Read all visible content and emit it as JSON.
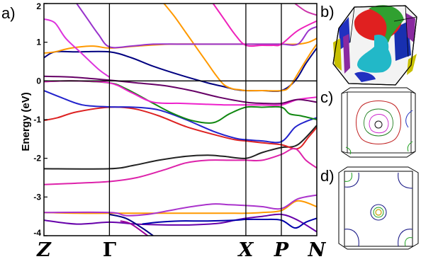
{
  "panel_labels": {
    "a": "a)",
    "b": "b)",
    "c": "c)",
    "d": "d)"
  },
  "chart_data": {
    "type": "line",
    "title": "",
    "ylabel": "Energy (eV)",
    "xlabel": "",
    "ylim": [
      -4,
      2
    ],
    "yticks": [
      {
        "value": 2,
        "label": "2"
      },
      {
        "value": 1,
        "label": "1"
      },
      {
        "value": 0,
        "label": "0"
      },
      {
        "value": -1,
        "label": "-1"
      },
      {
        "value": -2,
        "label": "-2"
      },
      {
        "value": -3,
        "label": "-3"
      },
      {
        "value": -4,
        "label": "-4"
      }
    ],
    "kpoints": [
      {
        "label": "Z",
        "pos": 0.0,
        "upright": false
      },
      {
        "label": "Γ",
        "pos": 0.24,
        "upright": true
      },
      {
        "label": "X",
        "pos": 0.74,
        "upright": false
      },
      {
        "label": "P",
        "pos": 0.87,
        "upright": false
      },
      {
        "label": "N",
        "pos": 1.0,
        "upright": false
      }
    ],
    "fermi_level": 0,
    "series": [
      {
        "color": "#222222",
        "x": [
          0,
          0.24,
          0.33,
          0.42,
          0.52,
          0.6,
          0.66,
          0.74,
          0.8,
          0.87,
          0.93,
          1.0
        ],
        "y": [
          -2.27,
          -2.27,
          -2.18,
          -2.05,
          -1.95,
          -1.92,
          -1.95,
          -2.0,
          -1.85,
          -1.72,
          -1.65,
          -1.15
        ]
      },
      {
        "color": "#dd2222",
        "x": [
          0,
          0.05,
          0.12,
          0.24,
          0.33,
          0.42,
          0.52,
          0.62,
          0.7,
          0.74,
          0.8,
          0.87,
          0.93,
          0.97,
          1.0
        ],
        "y": [
          -1.02,
          -0.95,
          -0.8,
          -0.68,
          -0.72,
          -0.9,
          -1.18,
          -1.38,
          -1.52,
          -1.55,
          -1.6,
          -1.65,
          -1.75,
          -1.45,
          -1.2
        ]
      },
      {
        "color": "#2222cc",
        "x": [
          0,
          0.06,
          0.14,
          0.24,
          0.33,
          0.42,
          0.52,
          0.62,
          0.7,
          0.74,
          0.8,
          0.87,
          0.92,
          0.96,
          1.0
        ],
        "y": [
          -0.25,
          -0.42,
          -0.62,
          -0.67,
          -0.68,
          -0.75,
          -1.0,
          -1.3,
          -1.48,
          -1.52,
          -1.55,
          -1.57,
          -1.2,
          -1.05,
          -0.95
        ]
      },
      {
        "color": "#118811",
        "x": [
          0,
          0.1,
          0.24,
          0.3,
          0.38,
          0.46,
          0.54,
          0.62,
          0.68,
          0.74,
          0.8,
          0.87,
          0.9,
          0.94,
          1.0
        ],
        "y": [
          -0.02,
          0.0,
          -0.05,
          -0.2,
          -0.5,
          -0.8,
          -1.02,
          -1.08,
          -0.85,
          -0.68,
          -0.68,
          -0.68,
          -0.85,
          -0.9,
          -1.0
        ]
      },
      {
        "color": "#ee22cc",
        "x": [
          0,
          0.1,
          0.24,
          0.32,
          0.4,
          0.5,
          0.58,
          0.66,
          0.74,
          0.8,
          0.87,
          0.93,
          1.0
        ],
        "y": [
          -0.02,
          0.0,
          -0.05,
          -0.3,
          -0.55,
          -0.58,
          -0.6,
          -0.62,
          -0.62,
          -0.62,
          -0.62,
          -0.48,
          -0.42
        ]
      },
      {
        "color": "#660066",
        "x": [
          0,
          0.1,
          0.24,
          0.34,
          0.44,
          0.54,
          0.64,
          0.74,
          0.8,
          0.87,
          0.93,
          1.0
        ],
        "y": [
          0.12,
          0.1,
          0.02,
          -0.05,
          -0.12,
          -0.25,
          -0.42,
          -0.55,
          -0.58,
          -0.58,
          -0.48,
          -0.55
        ]
      },
      {
        "color": "#000080",
        "x": [
          0,
          0.04,
          0.12,
          0.24,
          0.32,
          0.4,
          0.5,
          0.6,
          0.66,
          0.7,
          0.74,
          0.8,
          0.87,
          0.92,
          0.96,
          1.0
        ],
        "y": [
          0.6,
          0.75,
          0.75,
          0.75,
          0.6,
          0.38,
          0.15,
          -0.05,
          -0.15,
          -0.22,
          -0.25,
          -0.25,
          -0.25,
          0.0,
          0.45,
          0.85
        ]
      },
      {
        "color": "#ff9900",
        "x": [
          0,
          0.04,
          0.1,
          0.18,
          0.24,
          0.34,
          0.46,
          0.58,
          0.66,
          0.74,
          0.8,
          0.87,
          0.93,
          0.97,
          1.0
        ],
        "y": [
          0.72,
          0.75,
          0.85,
          0.9,
          0.85,
          0.9,
          0.95,
          0.95,
          0.95,
          0.95,
          0.95,
          0.95,
          0.95,
          1.0,
          1.1
        ]
      },
      {
        "color": "#ff9900",
        "x": [
          0.44,
          0.48,
          0.52,
          0.56,
          0.6,
          0.63,
          0.66,
          0.69,
          0.72,
          0.74,
          0.8,
          0.87,
          0.9,
          0.94,
          0.98,
          1.0
        ],
        "y": [
          2.0,
          1.65,
          1.25,
          0.85,
          0.45,
          0.15,
          -0.1,
          -0.2,
          -0.23,
          -0.25,
          -0.25,
          -0.25,
          -0.15,
          0.3,
          0.75,
          0.95
        ]
      },
      {
        "color": "#dd33dd",
        "x": [
          0,
          0.04,
          0.08,
          0.14,
          0.2,
          0.24
        ],
        "y": [
          1.6,
          1.5,
          1.1,
          0.7,
          0.3,
          0.1
        ]
      },
      {
        "color": "#9933cc",
        "x": [
          0.12,
          0.16,
          0.2,
          0.24,
          0.32,
          0.4,
          0.5,
          0.58,
          0.66,
          0.74,
          0.8,
          0.87,
          0.93,
          0.97,
          1.0
        ],
        "y": [
          2.0,
          1.6,
          1.2,
          0.88,
          0.9,
          0.95,
          0.95,
          0.95,
          0.95,
          0.95,
          0.95,
          0.95,
          0.95,
          1.3,
          1.4
        ]
      },
      {
        "color": "#ee22bb",
        "x": [
          0.62,
          0.66,
          0.7,
          0.74,
          0.8,
          0.84,
          0.87,
          0.93,
          1.0
        ],
        "y": [
          2.0,
          1.6,
          1.2,
          0.92,
          0.92,
          0.92,
          0.95,
          1.3,
          1.55
        ]
      },
      {
        "color": "#cc33aa",
        "x": [
          0.92,
          0.96,
          1.0
        ],
        "y": [
          2.0,
          1.8,
          1.7
        ]
      },
      {
        "color": "#dd22aa",
        "x": [
          0,
          0.1,
          0.24,
          0.34,
          0.44,
          0.52,
          0.6,
          0.68,
          0.74,
          0.8,
          0.87,
          0.92,
          0.96,
          1.0
        ],
        "y": [
          -2.68,
          -2.65,
          -2.6,
          -2.5,
          -2.3,
          -2.12,
          -2.05,
          -2.05,
          -2.05,
          -2.05,
          -1.9,
          -1.75,
          -2.05,
          -2.25
        ]
      },
      {
        "color": "#ff9900",
        "x": [
          0,
          0.12,
          0.24,
          0.36,
          0.48,
          0.6,
          0.7,
          0.74,
          0.8,
          0.87,
          0.93,
          1.0
        ],
        "y": [
          -3.4,
          -3.42,
          -3.42,
          -3.42,
          -3.42,
          -3.42,
          -3.42,
          -3.42,
          -3.4,
          -3.35,
          -3.1,
          -3.25
        ]
      },
      {
        "color": "#aa33cc",
        "x": [
          0,
          0.24,
          0.3,
          0.38,
          0.46,
          0.54,
          0.62,
          0.68,
          0.74,
          0.8,
          0.87,
          0.93,
          1.0
        ],
        "y": [
          -3.4,
          -3.4,
          -3.48,
          -3.45,
          -3.35,
          -3.25,
          -3.18,
          -3.2,
          -3.22,
          -3.25,
          -3.3,
          -3.05,
          -2.95
        ]
      },
      {
        "color": "#6600aa",
        "x": [
          0,
          0.12,
          0.24,
          0.34,
          0.44,
          0.54,
          0.64,
          0.7,
          0.74,
          0.8,
          0.87,
          0.93,
          1.0
        ],
        "y": [
          -3.6,
          -3.7,
          -3.65,
          -3.7,
          -3.72,
          -3.72,
          -3.68,
          -3.6,
          -3.55,
          -3.5,
          -3.45,
          -3.6,
          -3.9
        ]
      },
      {
        "color": "#000080",
        "x": [
          0.24,
          0.3,
          0.36,
          0.4
        ],
        "y": [
          -3.45,
          -3.55,
          -3.8,
          -4.0
        ]
      },
      {
        "color": "#0000aa",
        "x": [
          0.36,
          0.42,
          0.5,
          0.6,
          0.7,
          0.74,
          0.8,
          0.87,
          0.92,
          0.96,
          1.0
        ],
        "y": [
          -3.7,
          -3.65,
          -3.62,
          -3.62,
          -3.6,
          -3.58,
          -3.58,
          -3.6,
          -3.8,
          -3.65,
          -3.55
        ]
      },
      {
        "color": "#990099",
        "x": [
          0.28,
          0.32,
          0.38
        ],
        "y": [
          -3.62,
          -3.7,
          -4.0
        ]
      }
    ]
  }
}
